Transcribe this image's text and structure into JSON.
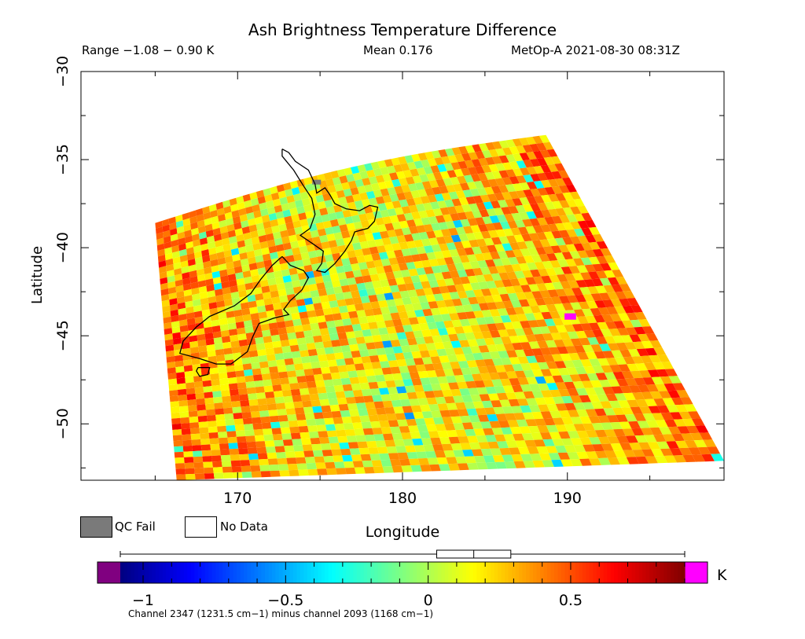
{
  "chart_data": {
    "type": "heatmap",
    "title": "Ash Brightness Temperature Difference",
    "range_text": "Range −1.08 − 0.90 K",
    "mean_text": "Mean 0.176",
    "satellite_text": "MetOp-A 2021-08-30 08:31Z",
    "xlabel": "Longitude",
    "ylabel": "Latitude",
    "xlim": [
      160.5,
      199.5
    ],
    "ylim": [
      -53.2,
      -30
    ],
    "xticks": [
      170,
      180,
      190
    ],
    "xtick_labels": [
      "170",
      "180",
      "190"
    ],
    "yticks": [
      -30,
      -35,
      -40,
      -45,
      -50
    ],
    "ytick_labels": [
      "−30",
      "−35",
      "−40",
      "−45",
      "−50"
    ],
    "value_range": [
      -1.08,
      0.9
    ],
    "mean": 0.176,
    "units": "K",
    "colorbar": {
      "min": -1.08,
      "max": 0.9,
      "tick_values": [
        -1,
        -0.5,
        0,
        0.5
      ],
      "tick_labels": [
        "−1",
        "−0.5",
        "0",
        "0.5"
      ],
      "unit_label": "K",
      "underflow_color": "#800080",
      "overflow_color": "#ff00ff",
      "colors": [
        "#000080",
        "#0000ff",
        "#0080ff",
        "#00ffff",
        "#80ff80",
        "#ffff00",
        "#ff8000",
        "#ff0000",
        "#800000"
      ],
      "boxplot": {
        "whisker_low": -1.08,
        "q1": 0.03,
        "median": 0.16,
        "q3": 0.29,
        "whisker_high": 0.9
      }
    },
    "swath_corners": {
      "top_left": [
        165.0,
        -38.6
      ],
      "top_right": [
        188.7,
        -33.6
      ],
      "bottom_right": [
        199.5,
        -52.1
      ],
      "bottom_left": [
        166.3,
        -53.2
      ]
    },
    "legend": [
      {
        "label": "QC Fail",
        "color": "#7a7a7a"
      },
      {
        "label": "No Data",
        "color": "#ffffff"
      }
    ],
    "channel_note": "Channel 2347 (1231.5 cm−1) minus channel 2093 (1168 cm−1)",
    "grid": false
  }
}
